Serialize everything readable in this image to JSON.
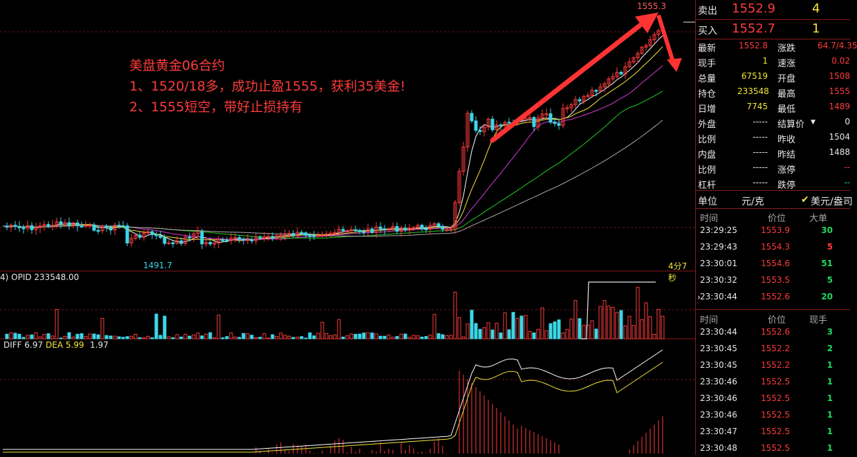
{
  "chart": {
    "high_marker": "1555.3",
    "low_marker": "1491.7",
    "countdown": "4分7秒",
    "opid_label": "4)  OPID 233548.00",
    "diff_label": "DIFF 6.97",
    "dea_label": "DEA 5.99",
    "macd_value": "1.97",
    "annotation_title": "美盘黄金06合约",
    "annotation_line1": "1、1520/18多，成功止盈1555，获利35美金!",
    "annotation_line2": "2、1555短空，带好止损持有",
    "colors": {
      "up": "#ff3b3b",
      "down": "#3cd7e8",
      "ma1": "#ffffff",
      "ma2": "#f5e63a",
      "ma3": "#d63cd6",
      "ma4": "#22cc22",
      "ma5": "#aaaaaa",
      "arrow": "#ff3333"
    }
  },
  "quote": {
    "sell": {
      "label": "卖出",
      "price": "1552.9",
      "qty": "4"
    },
    "buy": {
      "label": "买入",
      "price": "1552.7",
      "qty": "1"
    },
    "stats": [
      {
        "l1": "最新",
        "v1": "1552.8",
        "l2": "涨跌",
        "v2": "64.7/4.35"
      },
      {
        "l1": "现手",
        "v1": "1",
        "l2": "速涨",
        "v2": "0.02"
      },
      {
        "l1": "总量",
        "v1": "67519",
        "l2": "开盘",
        "v2": "1508"
      },
      {
        "l1": "持仓",
        "v1": "233548",
        "l2": "最高",
        "v2": "1555"
      },
      {
        "l1": "日增",
        "v1": "7745",
        "l2": "最低",
        "v2": "1489"
      },
      {
        "l1": "外盘",
        "v1": "-----",
        "l2": "结算价",
        "v2": "0"
      },
      {
        "l1": "比例",
        "v1": "-----",
        "l2": "昨收",
        "v2": "1504"
      },
      {
        "l1": "内盘",
        "v1": "-----",
        "l2": "昨结",
        "v2": "1488"
      },
      {
        "l1": "比例",
        "v1": "-----",
        "l2": "涨停",
        "v2": "--"
      },
      {
        "l1": "杠杆",
        "v1": "-----",
        "l2": "跌停",
        "v2": "--"
      }
    ],
    "unit_label": "单位",
    "unit_value": "元/克",
    "currency_label": "美元/盎司"
  },
  "big_orders": {
    "headers": [
      "时间",
      "价位",
      "大单"
    ],
    "rows": [
      [
        "23:29:25",
        "1553.9",
        "30"
      ],
      [
        "23:29:43",
        "1554.3",
        "5"
      ],
      [
        "23:30:01",
        "1554.6",
        "51"
      ],
      [
        "23:30:32",
        "1553.5",
        "5"
      ],
      [
        "23:30:44",
        "1552.6",
        "20"
      ]
    ]
  },
  "ticks": {
    "headers": [
      "时间",
      "价位",
      "现手"
    ],
    "rows": [
      [
        "23:30:44",
        "1552.6",
        "3"
      ],
      [
        "23:30:45",
        "1552.2",
        "2"
      ],
      [
        "23:30:45",
        "1552.2",
        "1"
      ],
      [
        "23:30:46",
        "1552.5",
        "1"
      ],
      [
        "23:30:46",
        "1552.5",
        "1"
      ],
      [
        "23:30:46",
        "1552.5",
        "1"
      ],
      [
        "23:30:47",
        "1552.5",
        "1"
      ],
      [
        "23:30:48",
        "1552.5",
        "1"
      ]
    ]
  }
}
